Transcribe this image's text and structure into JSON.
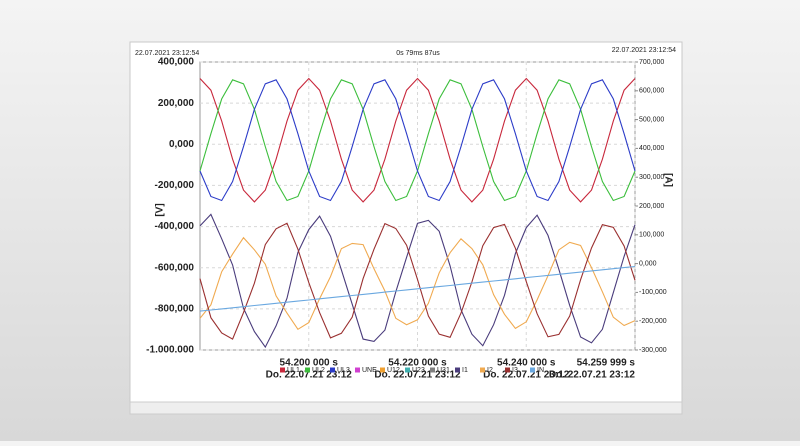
{
  "chart_data": {
    "type": "line",
    "header_left": "22.07.2021 23:12:54",
    "header_center": "0s 79ms 87us",
    "header_right": "22.07.2021 23:12:54",
    "y_label": "[V]",
    "y2_label": "[A]",
    "xlim": [
      54.18,
      54.26
    ],
    "ylim": [
      -1000000,
      400000
    ],
    "y2lim": [
      -300000,
      700000
    ],
    "grid": true,
    "legend": "bottom",
    "xticks": [
      {
        "value": 54.2,
        "label": "54.200 000 s"
      },
      {
        "value": 54.22,
        "label": "54.220 000 s"
      },
      {
        "value": 54.24,
        "label": "54.240 000 s"
      },
      {
        "value": 54.259999,
        "label": "54.259 999 s"
      }
    ],
    "xtick_sublabels": [
      "Do. 22.07.21 23:12",
      "Do. 22.07.21 23:12",
      "Do. 22.07.21 23:12",
      "Do. 22.07.21 23:12"
    ],
    "yticks": [
      {
        "value": 400000,
        "label": "400,000"
      },
      {
        "value": 200000,
        "label": "200,000"
      },
      {
        "value": 0,
        "label": "0,000"
      },
      {
        "value": -200000,
        "label": "-200,000"
      },
      {
        "value": -400000,
        "label": "-400,000"
      },
      {
        "value": -600000,
        "label": "-600,000"
      },
      {
        "value": -800000,
        "label": "-800,000"
      },
      {
        "value": -1000000,
        "label": "-1.000.000"
      }
    ],
    "y2ticks": [
      {
        "value": 700000,
        "label": "700,000"
      },
      {
        "value": 600000,
        "label": "600,000"
      },
      {
        "value": 500000,
        "label": "500,000"
      },
      {
        "value": 400000,
        "label": "400,000"
      },
      {
        "value": 300000,
        "label": "300,000"
      },
      {
        "value": 200000,
        "label": "200,000"
      },
      {
        "value": 100000,
        "label": "100,000"
      },
      {
        "value": 0,
        "label": "0,000"
      },
      {
        "value": -100000,
        "label": "-100,000"
      },
      {
        "value": -200000,
        "label": "-200,000"
      },
      {
        "value": -300000,
        "label": "-300,000"
      }
    ],
    "x": [
      54.18,
      54.182,
      54.184,
      54.186,
      54.188,
      54.19,
      54.192,
      54.194,
      54.196,
      54.198,
      54.2,
      54.202,
      54.204,
      54.206,
      54.208,
      54.21,
      54.212,
      54.214,
      54.216,
      54.218,
      54.22,
      54.222,
      54.224,
      54.226,
      54.228,
      54.23,
      54.232,
      54.234,
      54.236,
      54.238,
      54.24,
      54.242,
      54.244,
      54.246,
      54.248,
      54.25,
      54.252,
      54.254,
      54.256,
      54.258,
      54.26
    ],
    "series": [
      {
        "name": "UL1",
        "color": "#c8283c",
        "values": [
          320000,
          262700,
          112700,
          -72700,
          -222700,
          -280000,
          -222700,
          -72700,
          112700,
          262700,
          320000,
          262700,
          112700,
          -72700,
          -222700,
          -280000,
          -222700,
          -72700,
          112700,
          262700,
          320000,
          262700,
          112700,
          -72700,
          -222700,
          -280000,
          -222700,
          -72700,
          112700,
          262700,
          320000,
          262700,
          112700,
          -72700,
          -222700,
          -280000,
          -222700,
          -72700,
          112700,
          262700,
          320000
        ]
      },
      {
        "name": "UL2",
        "color": "#3cbe3c",
        "values": [
          -130000,
          51350,
          220730,
          313430,
          294050,
          170000,
          -11350,
          -180730,
          -273430,
          -254050,
          -130000,
          51350,
          220730,
          313430,
          294050,
          170000,
          -11350,
          -180730,
          -273430,
          -254050,
          -130000,
          51350,
          220730,
          313430,
          294050,
          170000,
          -11350,
          -180730,
          -273430,
          -254050,
          -130000,
          51350,
          220730,
          313430,
          294050,
          170000,
          -11350,
          -180730,
          -273430,
          -254050,
          -130000
        ]
      },
      {
        "name": "UL3",
        "color": "#2c3cc8",
        "values": [
          -130000,
          -254050,
          -273430,
          -180730,
          -11350,
          170000,
          294050,
          313430,
          220730,
          51350,
          -130000,
          -254050,
          -273430,
          -180730,
          -11350,
          170000,
          294050,
          313430,
          220730,
          51350,
          -130000,
          -254050,
          -273430,
          -180730,
          -11350,
          170000,
          294050,
          313430,
          220730,
          51350,
          -130000,
          -254050,
          -273430,
          -180730,
          -11350,
          170000,
          294050,
          313430,
          220730,
          51350,
          -130000
        ]
      },
      {
        "name": "UNE",
        "color": "#d040d0",
        "values": [
          null,
          null,
          null,
          null,
          null,
          null,
          null,
          null,
          null,
          null,
          null,
          null,
          null,
          null,
          null,
          null,
          null,
          null,
          null,
          null,
          null,
          null,
          null,
          null,
          null,
          null,
          null,
          null,
          null,
          null,
          null,
          null,
          null,
          null,
          null,
          null,
          null,
          null,
          null,
          null,
          null
        ]
      },
      {
        "name": "U12",
        "color": "#f0a030",
        "values": [
          null,
          null,
          null,
          null,
          null,
          null,
          null,
          null,
          null,
          null,
          null,
          null,
          null,
          null,
          null,
          null,
          null,
          null,
          null,
          null,
          null,
          null,
          null,
          null,
          null,
          null,
          null,
          null,
          null,
          null,
          null,
          null,
          null,
          null,
          null,
          null,
          null,
          null,
          null,
          null,
          null
        ]
      },
      {
        "name": "U23",
        "color": "#40b0b0",
        "values": [
          null,
          null,
          null,
          null,
          null,
          null,
          null,
          null,
          null,
          null,
          null,
          null,
          null,
          null,
          null,
          null,
          null,
          null,
          null,
          null,
          null,
          null,
          null,
          null,
          null,
          null,
          null,
          null,
          null,
          null,
          null,
          null,
          null,
          null,
          null,
          null,
          null,
          null,
          null,
          null,
          null
        ]
      },
      {
        "name": "U31",
        "color": "#808080",
        "values": [
          null,
          null,
          null,
          null,
          null,
          null,
          null,
          null,
          null,
          null,
          null,
          null,
          null,
          null,
          null,
          null,
          null,
          null,
          null,
          null,
          null,
          null,
          null,
          null,
          null,
          null,
          null,
          null,
          null,
          null,
          null,
          null,
          null,
          null,
          null,
          null,
          null,
          null,
          null,
          null,
          null
        ]
      },
      {
        "name": "I1",
        "color": "#4a3c7c",
        "axis": "y2",
        "values": [
          131000,
          171000,
          86000,
          -5000,
          -155000,
          -236000,
          -290000,
          -216000,
          -120000,
          39000,
          118000,
          165000,
          95000,
          -22000,
          -141000,
          -262000,
          -270000,
          -231000,
          -98000,
          22000,
          140000,
          150000,
          112000,
          -8000,
          -160000,
          -245000,
          -285000,
          -212000,
          -110000,
          35000,
          125000,
          168000,
          98000,
          -20000,
          -145000,
          -255000,
          -275000,
          -228000,
          -101000,
          25000,
          135000
        ]
      },
      {
        "name": "I2",
        "color": "#f0aa50",
        "axis": "y2",
        "values": [
          -190000,
          -143000,
          -28000,
          33000,
          90000,
          48000,
          -2000,
          -112000,
          -172000,
          -228000,
          -205000,
          -122000,
          -45000,
          52000,
          70000,
          66000,
          -18000,
          -95000,
          -190000,
          -212000,
          -195000,
          -138000,
          -32000,
          38000,
          86000,
          52000,
          -4000,
          -108000,
          -176000,
          -225000,
          -202000,
          -126000,
          -42000,
          48000,
          74000,
          63000,
          -14000,
          -98000,
          -186000,
          -215000,
          -198000
        ]
      },
      {
        "name": "I3",
        "color": "#9a3030",
        "axis": "y2",
        "values": [
          -52000,
          -188000,
          -241000,
          -262000,
          -170000,
          -68000,
          66000,
          121000,
          140000,
          50000,
          -66000,
          -170000,
          -258000,
          -242000,
          -186000,
          -52000,
          50000,
          139000,
          122000,
          64000,
          -55000,
          -182000,
          -245000,
          -256000,
          -172000,
          -64000,
          62000,
          125000,
          136000,
          53000,
          -63000,
          -174000,
          -254000,
          -246000,
          -182000,
          -56000,
          54000,
          135000,
          126000,
          61000,
          -58000
        ]
      },
      {
        "name": "IN",
        "color": "#6aa8e0",
        "axis": "y2",
        "values": [
          -165000,
          -161125,
          -157250,
          -153375,
          -149500,
          -145625,
          -141750,
          -137875,
          -134000,
          -130125,
          -126250,
          -122375,
          -118500,
          -114625,
          -110750,
          -106875,
          -103000,
          -99125,
          -95250,
          -91375,
          -87500,
          -83625,
          -79750,
          -75875,
          -72000,
          -68125,
          -64250,
          -60375,
          -56500,
          -52625,
          -48750,
          -44875,
          -41000,
          -37125,
          -33250,
          -29375,
          -25500,
          -21625,
          -17750,
          -13875,
          -10000
        ]
      }
    ]
  }
}
